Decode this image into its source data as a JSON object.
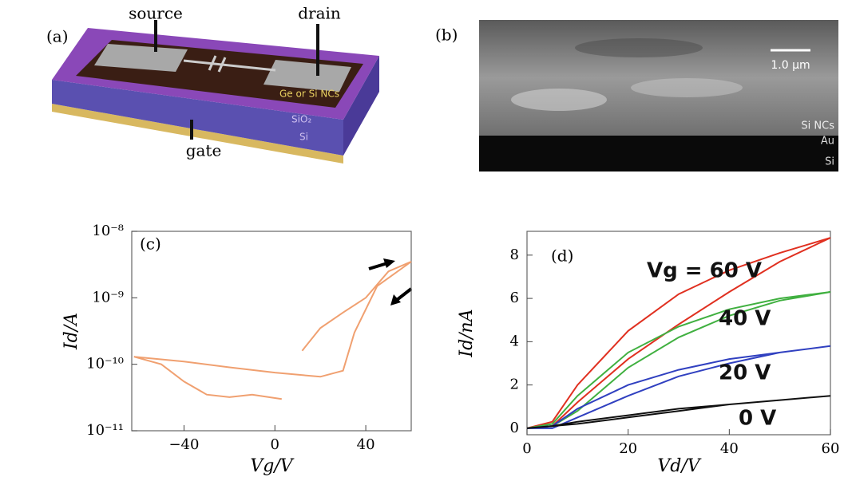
{
  "panel_a": {
    "label": "(a)",
    "source": "source",
    "drain": "drain",
    "gate": "gate",
    "nc_label": "Ge or Si NCs",
    "layers": [
      "SiO₂",
      "Si"
    ]
  },
  "panel_b": {
    "label": "(b)",
    "scale_bar": "1.0 μm",
    "layers": [
      "Si NCs",
      "Au",
      "Si"
    ]
  },
  "chart_data": [
    {
      "type": "line",
      "annotation": "(c)",
      "xlabel": "Vg/V",
      "ylabel": "Id/A",
      "log_y": true,
      "xlim": [
        -63,
        60
      ],
      "xticks": [
        {
          "value": -40,
          "label": "−40"
        },
        0,
        40
      ],
      "ylim": [
        1e-11,
        1e-08
      ],
      "yticks": [
        {
          "value": 1e-11,
          "label": "10⁻¹¹"
        },
        {
          "value": 1e-10,
          "label": "10⁻¹⁰"
        },
        {
          "value": 1e-09,
          "label": "10⁻⁹"
        },
        {
          "value": 1e-08,
          "label": "10⁻⁸"
        }
      ],
      "series": [
        {
          "color": "#f0a070",
          "x": [
            3,
            -10,
            -20,
            -30,
            -40,
            -50,
            -62,
            -40,
            -20,
            0,
            20,
            30,
            35,
            45,
            60,
            50,
            40,
            30,
            20,
            12
          ],
          "values": [
            3e-11,
            3.5e-11,
            3.2e-11,
            3.5e-11,
            5.5e-11,
            1e-10,
            1.3e-10,
            1.1e-10,
            9e-11,
            7.5e-11,
            6.5e-11,
            8e-11,
            3e-10,
            1.5e-09,
            3.5e-09,
            2.5e-09,
            1e-09,
            6e-10,
            3.5e-10,
            1.6e-10
          ]
        }
      ]
    },
    {
      "type": "line",
      "annotation": "(d)",
      "xlabel": "Vd/V",
      "ylabel": "Id/nA",
      "xlim": [
        0,
        60
      ],
      "xticks": [
        0,
        20,
        40,
        60
      ],
      "ylim": [
        -0.3,
        9.1
      ],
      "yticks": [
        0,
        2,
        4,
        6,
        8
      ],
      "series": [
        {
          "name": "Vg = 60 V",
          "color": "#e03020",
          "x": [
            0,
            5,
            10,
            20,
            30,
            40,
            50,
            60,
            50,
            40,
            30,
            20,
            10,
            5,
            0
          ],
          "values": [
            0,
            0.3,
            2,
            4.5,
            6.2,
            7.3,
            8.1,
            8.8,
            7.7,
            6.3,
            4.8,
            3.2,
            1.2,
            0.1,
            0
          ]
        },
        {
          "name": "40 V",
          "color": "#40b040",
          "x": [
            0,
            5,
            10,
            20,
            30,
            40,
            50,
            60,
            50,
            40,
            30,
            20,
            10,
            5,
            0
          ],
          "values": [
            0,
            0.2,
            1.5,
            3.5,
            4.7,
            5.5,
            6.0,
            6.3,
            5.9,
            5.2,
            4.2,
            2.8,
            0.8,
            0.1,
            0
          ]
        },
        {
          "name": "20 V",
          "color": "#3040c0",
          "x": [
            0,
            5,
            10,
            20,
            30,
            40,
            50,
            60,
            50,
            40,
            30,
            20,
            10,
            5,
            0
          ],
          "values": [
            0,
            0.1,
            0.9,
            2,
            2.7,
            3.2,
            3.5,
            3.8,
            3.5,
            3.0,
            2.4,
            1.5,
            0.5,
            0,
            0
          ]
        },
        {
          "name": "0 V",
          "color": "#101010",
          "x": [
            0,
            5,
            10,
            20,
            30,
            40,
            50,
            60,
            50,
            40,
            30,
            20,
            10,
            0
          ],
          "values": [
            0,
            0.1,
            0.3,
            0.6,
            0.9,
            1.1,
            1.3,
            1.5,
            1.3,
            1.1,
            0.8,
            0.5,
            0.2,
            0
          ]
        }
      ]
    }
  ]
}
